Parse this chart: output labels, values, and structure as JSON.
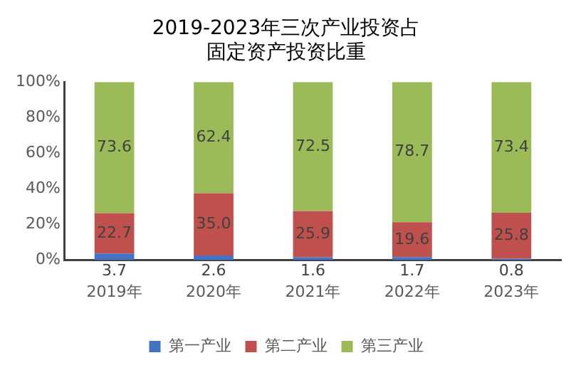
{
  "chart_data": {
    "type": "bar",
    "title": "2019-2023年三次产业投资占固定资产投资比重",
    "categories": [
      "2019年",
      "2020年",
      "2021年",
      "2022年",
      "2023年"
    ],
    "stacked": true,
    "series": [
      {
        "name": "第一产业",
        "color": "#4472c4",
        "values": [
          3.7,
          2.6,
          1.6,
          1.7,
          0.8
        ],
        "value_labels": [
          "3.7",
          "2.6",
          "1.6",
          "1.7",
          "0.8"
        ]
      },
      {
        "name": "第二产业",
        "color": "#c0504d",
        "values": [
          22.7,
          35.0,
          25.9,
          19.6,
          25.8
        ],
        "value_labels": [
          "22.7",
          "35.0",
          "25.9",
          "19.6",
          "25.8"
        ]
      },
      {
        "name": "第三产业",
        "color": "#9bbb59",
        "values": [
          73.6,
          62.4,
          72.5,
          78.7,
          73.4
        ],
        "value_labels": [
          "73.6",
          "62.4",
          "72.5",
          "78.7",
          "73.4"
        ]
      }
    ],
    "ylim": [
      0,
      100
    ],
    "yticks": [
      {
        "value": 0,
        "label": "0%"
      },
      {
        "value": 20,
        "label": "20%"
      },
      {
        "value": 40,
        "label": "40%"
      },
      {
        "value": 60,
        "label": "60%"
      },
      {
        "value": 80,
        "label": "80%"
      },
      {
        "value": 100,
        "label": "100%"
      }
    ],
    "grid": false,
    "legend": "bottom"
  }
}
